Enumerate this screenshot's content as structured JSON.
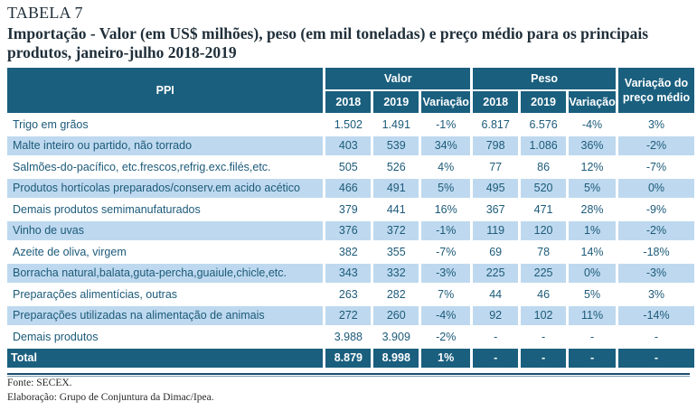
{
  "title_label": "TABELA 7",
  "subtitle": "Importação - Valor (em US$ milhões), peso (em mil toneladas) e preço médio para os principais produtos, janeiro-julho 2018-2019",
  "table": {
    "header": {
      "ppi": "PPI",
      "valor": "Valor",
      "peso": "Peso",
      "variacao_preco": "Variação do preço médio",
      "sub": [
        "2018",
        "2019",
        "Variação",
        "2018",
        "2019",
        "Variação"
      ]
    },
    "rows": [
      {
        "produto": "Trigo em grãos",
        "valor_2018": "1.502",
        "valor_2019": "1.491",
        "valor_var": "-1%",
        "peso_2018": "6.817",
        "peso_2019": "6.576",
        "peso_var": "-4%",
        "preco_var": "3%"
      },
      {
        "produto": "Malte inteiro ou partido, não torrado",
        "valor_2018": "403",
        "valor_2019": "539",
        "valor_var": "34%",
        "peso_2018": "798",
        "peso_2019": "1.086",
        "peso_var": "36%",
        "preco_var": "-2%"
      },
      {
        "produto": "Salmões-do-pacífico, etc.frescos,refrig.exc.filés,etc.",
        "valor_2018": "505",
        "valor_2019": "526",
        "valor_var": "4%",
        "peso_2018": "77",
        "peso_2019": "86",
        "peso_var": "12%",
        "preco_var": "-7%"
      },
      {
        "produto": "Produtos hortícolas preparados/conserv.em acido acético",
        "valor_2018": "466",
        "valor_2019": "491",
        "valor_var": "5%",
        "peso_2018": "495",
        "peso_2019": "520",
        "peso_var": "5%",
        "preco_var": "0%"
      },
      {
        "produto": "Demais produtos semimanufaturados",
        "valor_2018": "379",
        "valor_2019": "441",
        "valor_var": "16%",
        "peso_2018": "367",
        "peso_2019": "471",
        "peso_var": "28%",
        "preco_var": "-9%"
      },
      {
        "produto": "Vinho de uvas",
        "valor_2018": "376",
        "valor_2019": "372",
        "valor_var": "-1%",
        "peso_2018": "119",
        "peso_2019": "120",
        "peso_var": "1%",
        "preco_var": "-2%"
      },
      {
        "produto": "Azeite de oliva, virgem",
        "valor_2018": "382",
        "valor_2019": "355",
        "valor_var": "-7%",
        "peso_2018": "69",
        "peso_2019": "78",
        "peso_var": "14%",
        "preco_var": "-18%"
      },
      {
        "produto": "Borracha natural,balata,guta-percha,guaiule,chicle,etc.",
        "valor_2018": "343",
        "valor_2019": "332",
        "valor_var": "-3%",
        "peso_2018": "225",
        "peso_2019": "225",
        "peso_var": "0%",
        "preco_var": "-3%"
      },
      {
        "produto": "Preparações alimentícias, outras",
        "valor_2018": "263",
        "valor_2019": "282",
        "valor_var": "7%",
        "peso_2018": "44",
        "peso_2019": "46",
        "peso_var": "5%",
        "preco_var": "3%"
      },
      {
        "produto": "Preparações utilizadas na alimentação de animais",
        "valor_2018": "272",
        "valor_2019": "260",
        "valor_var": "-4%",
        "peso_2018": "92",
        "peso_2019": "102",
        "peso_var": "11%",
        "preco_var": "-14%"
      },
      {
        "produto": "Demais produtos",
        "valor_2018": "3.988",
        "valor_2019": "3.909",
        "valor_var": "-2%",
        "peso_2018": "-",
        "peso_2019": "-",
        "peso_var": "-",
        "preco_var": "-"
      }
    ],
    "total": {
      "produto": "Total",
      "valor_2018": "8.879",
      "valor_2019": "8.998",
      "valor_var": "1%",
      "peso_2018": "-",
      "peso_2019": "-",
      "peso_var": "-",
      "preco_var": "-"
    }
  },
  "footer": {
    "fonte": "Fonte: SECEX.",
    "elaboracao": "Elaboração: Grupo de Conjuntura da Dimac/Ipea."
  },
  "colors": {
    "header_bg": "#1a5f7e",
    "row_shade": "#bed9ef",
    "cell_text": "#1c5a79"
  }
}
